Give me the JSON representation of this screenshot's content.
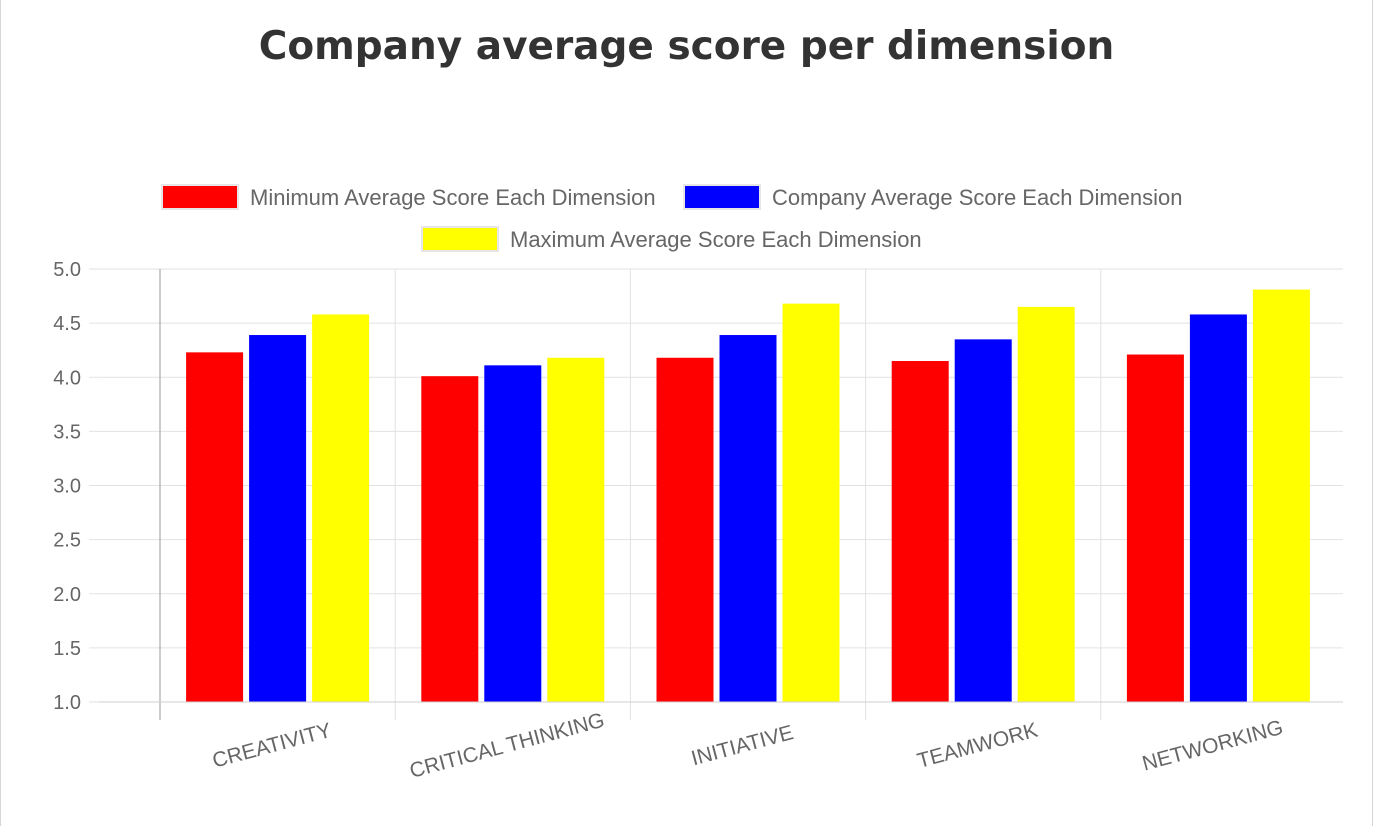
{
  "chart_data": {
    "type": "bar",
    "title": "Company average score per dimension",
    "categories": [
      "CREATIVITY",
      "CRITICAL THINKING",
      "INITIATIVE",
      "TEAMWORK",
      "NETWORKING"
    ],
    "series": [
      {
        "name": "Minimum Average Score Each Dimension",
        "color": "#ff0000",
        "values": [
          4.23,
          4.01,
          4.18,
          4.15,
          4.21
        ]
      },
      {
        "name": "Company Average Score Each Dimension",
        "color": "#0000ff",
        "values": [
          4.39,
          4.11,
          4.39,
          4.35,
          4.58
        ]
      },
      {
        "name": "Maximum Average Score Each Dimension",
        "color": "#ffff00",
        "values": [
          4.58,
          4.18,
          4.68,
          4.65,
          4.81
        ]
      }
    ],
    "ylim": [
      1.0,
      5.0
    ],
    "yticks": [
      "1.0",
      "1.5",
      "2.0",
      "2.5",
      "3.0",
      "3.5",
      "4.0",
      "4.5",
      "5.0"
    ],
    "xlabel": "",
    "ylabel": "",
    "grid": true,
    "legend_position": "top"
  }
}
